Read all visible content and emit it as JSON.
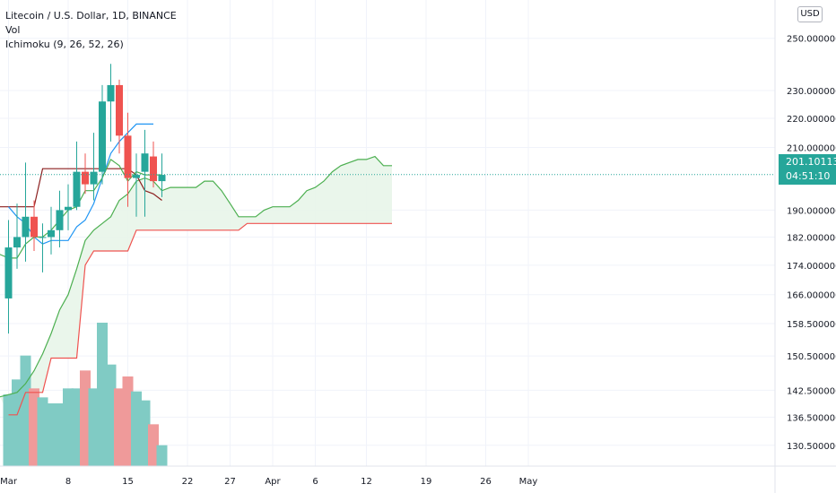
{
  "legend": {
    "title": "Litecoin / U.S. Dollar, 1D, BINANCE",
    "vol_label": "Vol",
    "ichimoku_label": "Ichimoku (9, 26, 52, 26)"
  },
  "currency_badge": "USD",
  "last_price": {
    "price": "201.101130",
    "countdown": "04:51:10"
  },
  "colors": {
    "bull": "#26a69a",
    "bear": "#ef5350",
    "conversion": "#2196f3",
    "base": "#8b1e1e",
    "lagging": "#4caf50",
    "span_a": "#4caf50",
    "span_b": "#ef5350",
    "cloud_fill": "#e8f5e9",
    "vol_bull": "#80cbc4",
    "vol_bear": "#ef9a9a"
  },
  "chart_data": {
    "type": "candlestick",
    "y_scale": "log",
    "ylim": [
      127.5,
      262
    ],
    "x_day_range": [
      1,
      63
    ],
    "price_ticks": [
      "130.500000",
      "136.500000",
      "142.500000",
      "150.500000",
      "158.500000",
      "166.000000",
      "174.000000",
      "182.000000",
      "190.000000",
      "210.000000",
      "220.000000",
      "230.000000",
      "250.000000"
    ],
    "price_tick_values": [
      130.5,
      136.5,
      142.5,
      150.5,
      158.5,
      166,
      174,
      182,
      190,
      210,
      220,
      230,
      250
    ],
    "x_ticks": [
      {
        "label": "Mar",
        "day": 1
      },
      {
        "label": "8",
        "day": 8
      },
      {
        "label": "15",
        "day": 15
      },
      {
        "label": "22",
        "day": 22
      },
      {
        "label": "27",
        "day": 27
      },
      {
        "label": "Apr",
        "day": 32
      },
      {
        "label": "6",
        "day": 37
      },
      {
        "label": "12",
        "day": 43
      },
      {
        "label": "19",
        "day": 50
      },
      {
        "label": "26",
        "day": 57
      },
      {
        "label": "May",
        "day": 62
      }
    ],
    "candles": [
      {
        "day": 1,
        "open": 165,
        "high": 187,
        "low": 156,
        "close": 179
      },
      {
        "day": 2,
        "open": 179,
        "high": 192,
        "low": 173,
        "close": 182
      },
      {
        "day": 3,
        "open": 182,
        "high": 205,
        "low": 175,
        "close": 188
      },
      {
        "day": 4,
        "open": 188,
        "high": 193,
        "low": 178,
        "close": 182
      },
      {
        "day": 5,
        "open": 182,
        "high": 186,
        "low": 172,
        "close": 182
      },
      {
        "day": 6,
        "open": 182,
        "high": 191,
        "low": 177,
        "close": 184
      },
      {
        "day": 7,
        "open": 184,
        "high": 196,
        "low": 179,
        "close": 190
      },
      {
        "day": 8,
        "open": 190,
        "high": 198,
        "low": 184,
        "close": 191
      },
      {
        "day": 9,
        "open": 191,
        "high": 212,
        "low": 190,
        "close": 202
      },
      {
        "day": 10,
        "open": 202,
        "high": 208,
        "low": 195,
        "close": 198
      },
      {
        "day": 11,
        "open": 198,
        "high": 215,
        "low": 193,
        "close": 202
      },
      {
        "day": 12,
        "open": 202,
        "high": 232,
        "low": 198,
        "close": 226
      },
      {
        "day": 13,
        "open": 226,
        "high": 240,
        "low": 212,
        "close": 232
      },
      {
        "day": 14,
        "open": 232,
        "high": 234,
        "low": 208,
        "close": 214
      },
      {
        "day": 15,
        "open": 214,
        "high": 222,
        "low": 191,
        "close": 200
      },
      {
        "day": 16,
        "open": 200,
        "high": 208,
        "low": 188,
        "close": 201
      },
      {
        "day": 17,
        "open": 202,
        "high": 216,
        "low": 188,
        "close": 208
      },
      {
        "day": 18,
        "open": 207,
        "high": 212,
        "low": 197,
        "close": 199
      },
      {
        "day": 19,
        "open": 199,
        "high": 208,
        "low": 194,
        "close": 201
      }
    ],
    "volume": [
      {
        "day": 1,
        "value": 24,
        "up": true
      },
      {
        "day": 2,
        "value": 29,
        "up": true
      },
      {
        "day": 3,
        "value": 37,
        "up": true
      },
      {
        "day": 4,
        "value": 26,
        "up": false
      },
      {
        "day": 5,
        "value": 23,
        "up": true
      },
      {
        "day": 6,
        "value": 21,
        "up": true
      },
      {
        "day": 7,
        "value": 21,
        "up": true
      },
      {
        "day": 8,
        "value": 26,
        "up": true
      },
      {
        "day": 9,
        "value": 26,
        "up": true
      },
      {
        "day": 10,
        "value": 32,
        "up": false
      },
      {
        "day": 11,
        "value": 26,
        "up": true
      },
      {
        "day": 12,
        "value": 48,
        "up": true
      },
      {
        "day": 13,
        "value": 34,
        "up": true
      },
      {
        "day": 14,
        "value": 26,
        "up": false
      },
      {
        "day": 15,
        "value": 30,
        "up": false
      },
      {
        "day": 16,
        "value": 25,
        "up": true
      },
      {
        "day": 17,
        "value": 22,
        "up": true
      },
      {
        "day": 18,
        "value": 14,
        "up": false
      },
      {
        "day": 19,
        "value": 7,
        "up": true
      }
    ],
    "volume_max": 60,
    "conversion_line": [
      [
        1,
        191
      ],
      [
        2,
        188
      ],
      [
        3,
        186
      ],
      [
        4,
        182
      ],
      [
        5,
        180
      ],
      [
        6,
        181
      ],
      [
        7,
        181
      ],
      [
        8,
        181
      ],
      [
        9,
        185
      ],
      [
        10,
        187
      ],
      [
        11,
        192
      ],
      [
        12,
        200
      ],
      [
        13,
        208
      ],
      [
        14,
        212
      ],
      [
        15,
        215
      ],
      [
        16,
        218
      ],
      [
        17,
        218
      ],
      [
        18,
        218
      ]
    ],
    "base_line": [
      [
        0,
        191
      ],
      [
        4,
        191
      ],
      [
        5,
        203
      ],
      [
        7,
        203
      ],
      [
        15,
        203
      ],
      [
        16,
        201
      ],
      [
        17,
        196
      ],
      [
        18,
        195
      ],
      [
        19,
        193
      ]
    ],
    "lagging_line": [
      [
        -1,
        178
      ],
      [
        0,
        177
      ],
      [
        1,
        176
      ],
      [
        2,
        176
      ],
      [
        3,
        180
      ],
      [
        4,
        182
      ],
      [
        5,
        182
      ],
      [
        6,
        184
      ],
      [
        7,
        187
      ],
      [
        8,
        190
      ],
      [
        9,
        191
      ],
      [
        10,
        196
      ],
      [
        11,
        196
      ],
      [
        12,
        200
      ],
      [
        13,
        206
      ],
      [
        14,
        204
      ],
      [
        15,
        199
      ],
      [
        16,
        202
      ],
      [
        17,
        201
      ],
      [
        18,
        201
      ],
      [
        19,
        201
      ]
    ],
    "span_a": [
      [
        0,
        141
      ],
      [
        2,
        142
      ],
      [
        3,
        144
      ],
      [
        4,
        147
      ],
      [
        5,
        151
      ],
      [
        6,
        156
      ],
      [
        7,
        162
      ],
      [
        8,
        166
      ],
      [
        9,
        173
      ],
      [
        10,
        181
      ],
      [
        11,
        184
      ],
      [
        12,
        186
      ],
      [
        13,
        188
      ],
      [
        14,
        193
      ],
      [
        15,
        195
      ],
      [
        16,
        199
      ],
      [
        17,
        200
      ],
      [
        18,
        199
      ],
      [
        19,
        196
      ],
      [
        20,
        197
      ],
      [
        21,
        197
      ],
      [
        22,
        197
      ],
      [
        23,
        197
      ],
      [
        24,
        199
      ],
      [
        25,
        199
      ],
      [
        26,
        196
      ],
      [
        27,
        192
      ],
      [
        28,
        188
      ],
      [
        29,
        188
      ],
      [
        30,
        188
      ],
      [
        31,
        190
      ],
      [
        32,
        191
      ],
      [
        33,
        191
      ],
      [
        34,
        191
      ],
      [
        35,
        193
      ],
      [
        36,
        196
      ],
      [
        37,
        197
      ],
      [
        38,
        199
      ],
      [
        39,
        202
      ],
      [
        40,
        204
      ],
      [
        41,
        205
      ],
      [
        42,
        206
      ],
      [
        43,
        206
      ],
      [
        44,
        207
      ],
      [
        45,
        204
      ],
      [
        46,
        204
      ]
    ],
    "span_b": [
      [
        1,
        137
      ],
      [
        2,
        137
      ],
      [
        3,
        142
      ],
      [
        4,
        142
      ],
      [
        5,
        142
      ],
      [
        6,
        150
      ],
      [
        7,
        150
      ],
      [
        8,
        150
      ],
      [
        9,
        150
      ],
      [
        10,
        174
      ],
      [
        11,
        178
      ],
      [
        12,
        178
      ],
      [
        13,
        178
      ],
      [
        14,
        178
      ],
      [
        15,
        178
      ],
      [
        16,
        184
      ],
      [
        17,
        184
      ],
      [
        18,
        184
      ],
      [
        19,
        184
      ],
      [
        20,
        184
      ],
      [
        21,
        184
      ],
      [
        22,
        184
      ],
      [
        23,
        184
      ],
      [
        24,
        184
      ],
      [
        25,
        184
      ],
      [
        26,
        184
      ],
      [
        27,
        184
      ],
      [
        28,
        184
      ],
      [
        29,
        186
      ],
      [
        30,
        186
      ],
      [
        31,
        186
      ],
      [
        32,
        186
      ],
      [
        33,
        186
      ],
      [
        34,
        186
      ],
      [
        35,
        186
      ],
      [
        36,
        186
      ],
      [
        37,
        186
      ],
      [
        38,
        186
      ],
      [
        39,
        186
      ],
      [
        40,
        186
      ],
      [
        41,
        186
      ],
      [
        42,
        186
      ],
      [
        43,
        186
      ],
      [
        44,
        186
      ],
      [
        45,
        186
      ],
      [
        46,
        186
      ]
    ],
    "last_price_value": 201.10113
  }
}
